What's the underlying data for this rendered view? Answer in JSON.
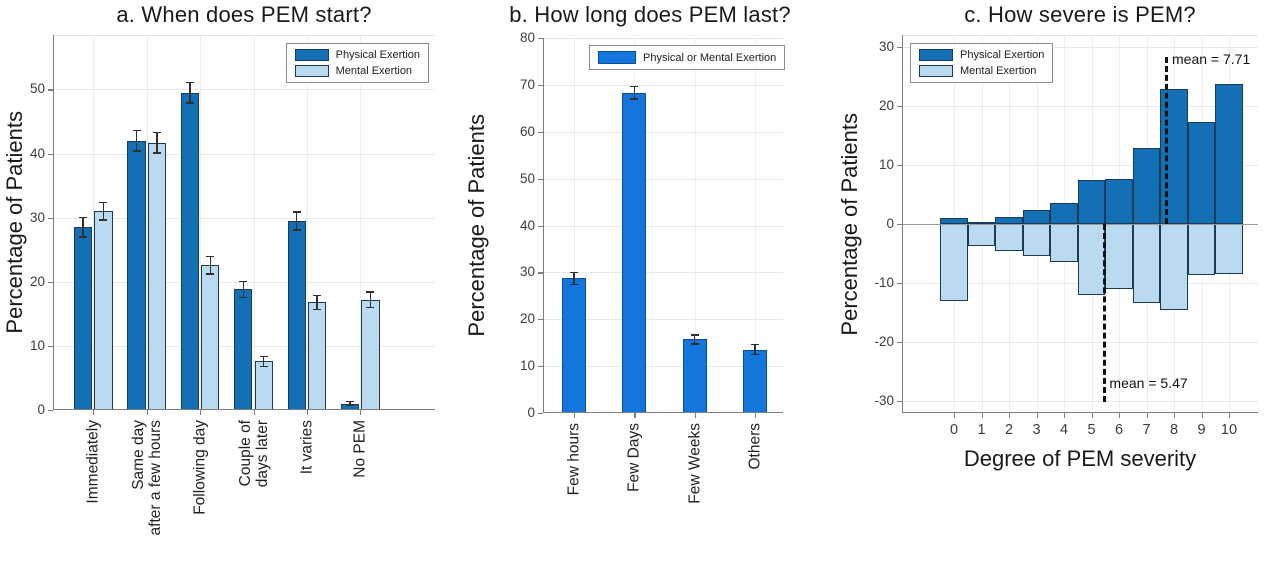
{
  "figure": {
    "background": "#ffffff"
  },
  "chart_data": [
    {
      "id": "a",
      "type": "bar",
      "title": "a. When does PEM start?",
      "ylabel": "Percentage of Patients",
      "ylim": [
        0,
        58.5
      ],
      "yticks": [
        0,
        10,
        20,
        30,
        40,
        50
      ],
      "grid": true,
      "legend_position": "top-right",
      "categories": [
        "Immediately",
        "Same day\nafter a few hours",
        "Following day",
        "Couple of\ndays later",
        "It varies",
        "No PEM"
      ],
      "series": [
        {
          "name": "Physical Exertion",
          "color": "#1470b4",
          "edge_color": "#1b3a57",
          "values": [
            28.5,
            42.0,
            49.5,
            18.8,
            29.5,
            1.0
          ],
          "errors": [
            1.6,
            1.7,
            1.7,
            1.4,
            1.5,
            0.4
          ]
        },
        {
          "name": "Mental Exertion",
          "color": "#badaf0",
          "edge_color": "#1b3a57",
          "values": [
            31.0,
            41.7,
            22.6,
            7.6,
            16.8,
            17.2
          ],
          "errors": [
            1.5,
            1.7,
            1.5,
            0.9,
            1.2,
            1.3
          ]
        }
      ]
    },
    {
      "id": "b",
      "type": "bar",
      "title": "b. How long does PEM last?",
      "ylabel": "Percentage of Patients",
      "ylim": [
        0,
        80
      ],
      "yticks": [
        0,
        10,
        20,
        30,
        40,
        50,
        60,
        70,
        80
      ],
      "grid": true,
      "legend_position": "top-center",
      "categories": [
        "Few hours",
        "Few Days",
        "Few Weeks",
        "Others"
      ],
      "series": [
        {
          "name": "Physical or Mental Exertion",
          "color": "#1276dd",
          "edge_color": "#0c4f96",
          "values": [
            28.7,
            68.3,
            15.7,
            13.5
          ],
          "errors": [
            1.4,
            1.5,
            1.1,
            1.2
          ]
        }
      ]
    },
    {
      "id": "c",
      "type": "mirrored-histogram",
      "title": "c. How severe is PEM?",
      "ylabel": "Percentage of Patients",
      "xlabel": "Degree of PEM severity",
      "ylim": [
        -32,
        32
      ],
      "yticks": [
        -30,
        -20,
        -10,
        0,
        10,
        20,
        30
      ],
      "xticks": [
        0,
        1,
        2,
        3,
        4,
        5,
        6,
        7,
        8,
        9,
        10
      ],
      "grid": true,
      "legend_position": "top-left",
      "series": [
        {
          "name": "Physical Exertion",
          "direction": "up",
          "color": "#1470b4",
          "edge_color": "#1b3a57",
          "values": [
            1.0,
            0.3,
            1.2,
            2.3,
            3.6,
            7.5,
            7.6,
            12.9,
            22.9,
            17.3,
            23.7
          ],
          "mean": 7.71,
          "mean_label": "mean = 7.71"
        },
        {
          "name": "Mental Exertion",
          "direction": "down",
          "color": "#badaf0",
          "edge_color": "#1b3a57",
          "values": [
            13.0,
            3.7,
            4.6,
            5.5,
            6.4,
            12.0,
            11.0,
            13.4,
            14.5,
            8.6,
            8.4
          ],
          "mean": 5.47,
          "mean_label": "mean = 5.47"
        }
      ]
    }
  ]
}
